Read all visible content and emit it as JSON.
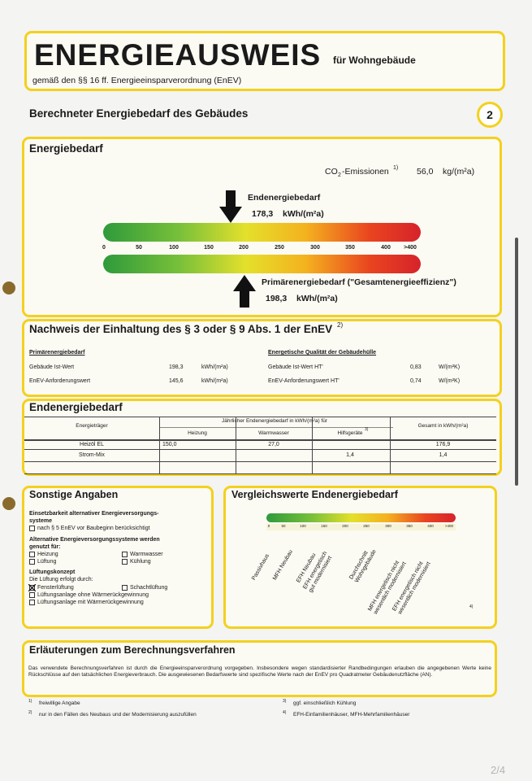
{
  "header": {
    "title": "ENERGIEAUSWEIS",
    "title_suffix": "für Wohngebäude",
    "subtitle": "gemäß den §§ 16 ff. Energieeinsparverordnung (EnEV)"
  },
  "page_heading": {
    "text": "Berechneter Energiebedarf des Gebäudes",
    "page_number": "2"
  },
  "energiebedarf": {
    "title": "Energiebedarf",
    "co2_label": "CO",
    "co2_sub": "2",
    "co2_label_end": "-Emissionen",
    "co2_footnote": "1)",
    "co2_value": "56,0",
    "co2_unit": "kg/(m²a)",
    "end_label": "Endenergiebedarf",
    "end_value": "178,3",
    "end_unit": "kWh/(m²a)",
    "scale": [
      "0",
      "50",
      "100",
      "150",
      "200",
      "250",
      "300",
      "350",
      "400",
      ">400"
    ],
    "primary_label": "Primärenergiebedarf (\"Gesamtenergieeffizienz\")",
    "primary_value": "198,3",
    "primary_unit": "kWh/(m²a)"
  },
  "nachweis": {
    "title": "Nachweis der Einhaltung des § 3 oder § 9 Abs. 1 der EnEV",
    "footnote": "2)",
    "left": {
      "heading": "Primärenergiebedarf",
      "rows": [
        [
          "Gebäude Ist-Wert",
          "198,3",
          "kWh/(m²a)"
        ],
        [
          "EnEV-Anforderungswert",
          "145,6",
          "kWh/(m²a)"
        ]
      ]
    },
    "right": {
      "heading": "Energetische Qualität der Gebäudehülle",
      "rows": [
        [
          "Gebäude Ist-Wert HT'",
          "0,83",
          "W/(m²K)"
        ],
        [
          "EnEV-Anforderungswert HT'",
          "0,74",
          "W/(m²K)"
        ]
      ]
    }
  },
  "endenergiebedarf": {
    "title": "Endenergiebedarf",
    "header": {
      "carrier": "Energieträger",
      "annual": "Jährlicher Endenergiebedarf in kWh/(m²a) für",
      "heizung": "Heizung",
      "warmwasser": "Warmwasser",
      "hilfsgeraete": "Hilfsgeräte",
      "hilfs_footnote": "3)",
      "gesamt": "Gesamt in kWh/(m²a)"
    },
    "rows": [
      {
        "carrier": "Heizöl EL",
        "heizung": "150,0",
        "warmwasser": "27,0",
        "hilfsgeraete": null,
        "gesamt": "176,9"
      },
      {
        "carrier": "Strom-Mix",
        "heizung": null,
        "warmwasser": null,
        "hilfsgeraete": "1,4",
        "gesamt": "1,4"
      }
    ]
  },
  "sonstige": {
    "title": "Sonstige Angaben",
    "alt_heading": [
      "Einsetzbarkeit alternativer Energieversorgungs-",
      "systeme"
    ],
    "alt_check": "nach § 5 EnEV vor Baubeginn berücksichtigt",
    "use_heading": [
      "Alternative Energieversorgungssysteme werden",
      "genutzt für:"
    ],
    "use_options": [
      "Heizung",
      "Warmwasser",
      "Lüftung",
      "Kühlung"
    ],
    "vent_heading": "Lüftungskonzept",
    "vent_intro": "Die Lüftung erfolgt durch:",
    "vent_options": [
      "Fensterlüftung",
      "Schachtlüftung",
      "Lüftungsanlage ohne Wärmerückgewinnung",
      "Lüftungsanlage mit Wärmerückgewinnung"
    ]
  },
  "vergleich": {
    "title": "Vergleichswerte Endenergiebedarf",
    "scale": [
      "0",
      "50",
      "100",
      "150",
      "200",
      "250",
      "300",
      "350",
      "400",
      ">400"
    ],
    "categories": [
      [
        "Passivhaus"
      ],
      [
        "MFH Neubau"
      ],
      [
        "EFH Neubau"
      ],
      [
        "EFH energetisch",
        "gut modernisiert"
      ],
      [
        "Durchschnitt",
        "Wohngebäude"
      ],
      [
        "MFH energetisch nicht",
        "wesentlich modernisiert"
      ],
      [
        "EFH energetisch nicht",
        "wesentlich modernisiert"
      ]
    ],
    "footnote": "4)"
  },
  "erlaeuterungen": {
    "title": "Erläuterungen zum Berechnungsverfahren",
    "text": "Das verwendete Berechnungsverfahren ist durch die Energieeinsparverordnung vorgegeben. Insbesondere wegen standardisierter Randbedingungen erlauben die angegebenen Werte keine Rückschlüsse auf den tatsächlichen Energieverbrauch. Die ausgewiesenen Bedarfswerte sind spezifische Werte nach der EnEV pro Quadratmeter Gebäudenutzfläche (AN)."
  },
  "footnotes": [
    [
      "1)",
      "freiwillige Angabe"
    ],
    [
      "2)",
      "nur in den Fällen des Neubaus und der Modernisierung auszufüllen"
    ],
    [
      "3)",
      "ggf. einschließlich Kühlung"
    ],
    [
      "4)",
      "EFH-Einfamilienhäuser, MFH-Mehrfamilienhäuser"
    ]
  ],
  "pager": "2/4"
}
